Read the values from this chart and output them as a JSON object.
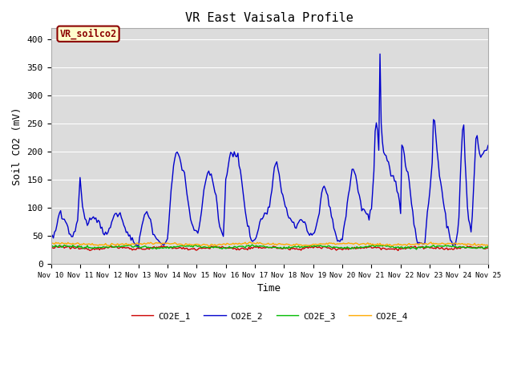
{
  "title": "VR East Vaisala Profile",
  "xlabel": "Time",
  "ylabel": "Soil CO2 (mV)",
  "ylim": [
    0,
    420
  ],
  "xlim": [
    0,
    360
  ],
  "background_color": "#dcdcdc",
  "figure_color": "#ffffff",
  "annotation_text": "VR_soilco2",
  "annotation_color": "#8b0000",
  "annotation_bg": "#ffffcc",
  "annotation_border": "#8b0000",
  "xtick_labels": [
    "Nov 10",
    "Nov 11",
    "Nov 12",
    "Nov 13",
    "Nov 14",
    "Nov 15",
    "Nov 16",
    "Nov 17",
    "Nov 18",
    "Nov 19",
    "Nov 20",
    "Nov 21",
    "Nov 22",
    "Nov 23",
    "Nov 24",
    "Nov 25"
  ],
  "xtick_positions": [
    0,
    24,
    48,
    72,
    96,
    120,
    144,
    168,
    192,
    216,
    240,
    264,
    288,
    312,
    336,
    360
  ],
  "ytick_positions": [
    0,
    50,
    100,
    150,
    200,
    250,
    300,
    350,
    400
  ],
  "lines": {
    "CO2E_1": {
      "color": "#cc0000",
      "lw": 1.0
    },
    "CO2E_2": {
      "color": "#0000cc",
      "lw": 1.0
    },
    "CO2E_3": {
      "color": "#00bb00",
      "lw": 1.0
    },
    "CO2E_4": {
      "color": "#ffaa00",
      "lw": 1.0
    }
  },
  "grid_color": "#ffffff",
  "grid_alpha": 1.0,
  "co2e2_seed": 12345,
  "co2e1_base": 28,
  "co2e3_base": 30,
  "co2e4_base": 35
}
